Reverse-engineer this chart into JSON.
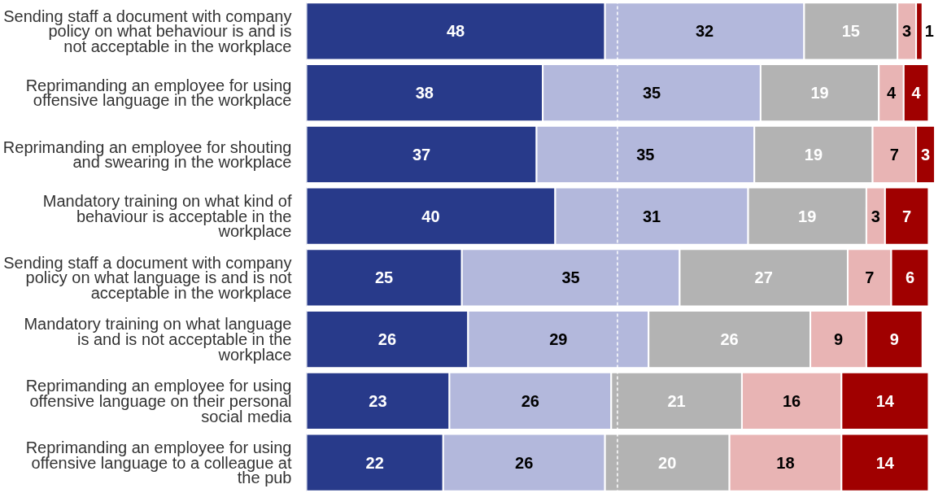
{
  "chart_data": {
    "type": "bar",
    "orientation": "horizontal",
    "stacked": true,
    "data_labels": true,
    "grid": false,
    "tick_labels": "y",
    "categories": [
      "Sending staff a document with company policy on what behaviour is and is not acceptable in the workplace",
      "Reprimanding an employee for using offensive language in the workplace",
      "Reprimanding an employee for shouting and swearing in the workplace",
      "Mandatory training on what kind of behaviour is acceptable in the workplace",
      "Sending staff a document with company policy on what language is and is not acceptable in the workplace",
      "Mandatory training on what language is and is not acceptable in the workplace",
      "Reprimanding an employee for using offensive language on their personal social media",
      "Reprimanding an employee for using offensive language to a colleague at the pub"
    ],
    "series": [
      {
        "color": "#283a8a",
        "values": [
          48,
          38,
          37,
          40,
          25,
          26,
          23,
          22
        ]
      },
      {
        "color": "#b3b8dc",
        "values": [
          32,
          35,
          35,
          31,
          35,
          29,
          26,
          26
        ]
      },
      {
        "color": "#b3b3b3",
        "values": [
          15,
          19,
          19,
          19,
          27,
          26,
          21,
          20
        ]
      },
      {
        "color": "#e8b4b4",
        "values": [
          3,
          4,
          7,
          3,
          7,
          9,
          16,
          18
        ]
      },
      {
        "color": "#a00000",
        "values": [
          1,
          4,
          3,
          7,
          6,
          9,
          14,
          14
        ]
      }
    ],
    "ref_lines": [
      {
        "axis": "x",
        "value": 50,
        "color": "#ffffff",
        "line_style": "dashed"
      }
    ]
  }
}
